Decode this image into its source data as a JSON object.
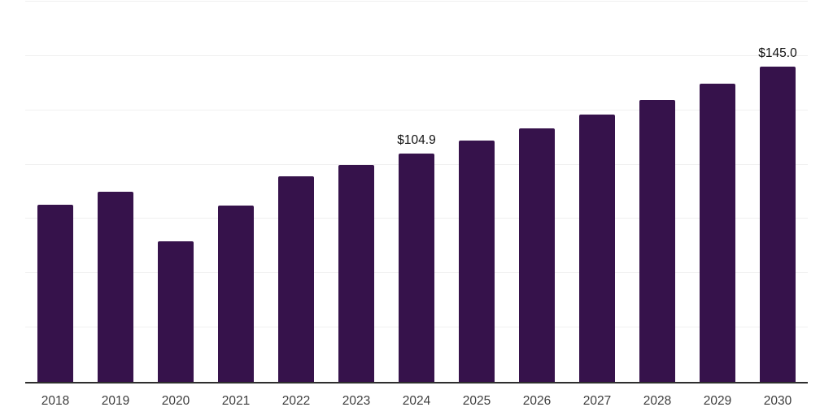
{
  "chart_data": {
    "type": "bar",
    "title": "",
    "xlabel": "",
    "ylabel": "",
    "categories": [
      "2018",
      "2019",
      "2020",
      "2021",
      "2022",
      "2023",
      "2024",
      "2025",
      "2026",
      "2027",
      "2028",
      "2029",
      "2030"
    ],
    "values": [
      81.4,
      87.4,
      64.6,
      81.0,
      94.5,
      99.7,
      104.9,
      110.9,
      116.5,
      123.2,
      129.9,
      137.4,
      145.0
    ],
    "annotations": [
      {
        "category": "2024",
        "text": "$104.9"
      },
      {
        "category": "2030",
        "text": "$145.0"
      }
    ],
    "ylim": [
      0,
      175
    ],
    "gridline_step": 25,
    "grid": true,
    "legend": false,
    "colors": {
      "bar": "#36124b",
      "gridline": "#f0f0f0",
      "axis_line": "#2e2e2e",
      "tick_label": "#3d3d3d",
      "value_label": "#111111",
      "background": "#ffffff"
    }
  }
}
